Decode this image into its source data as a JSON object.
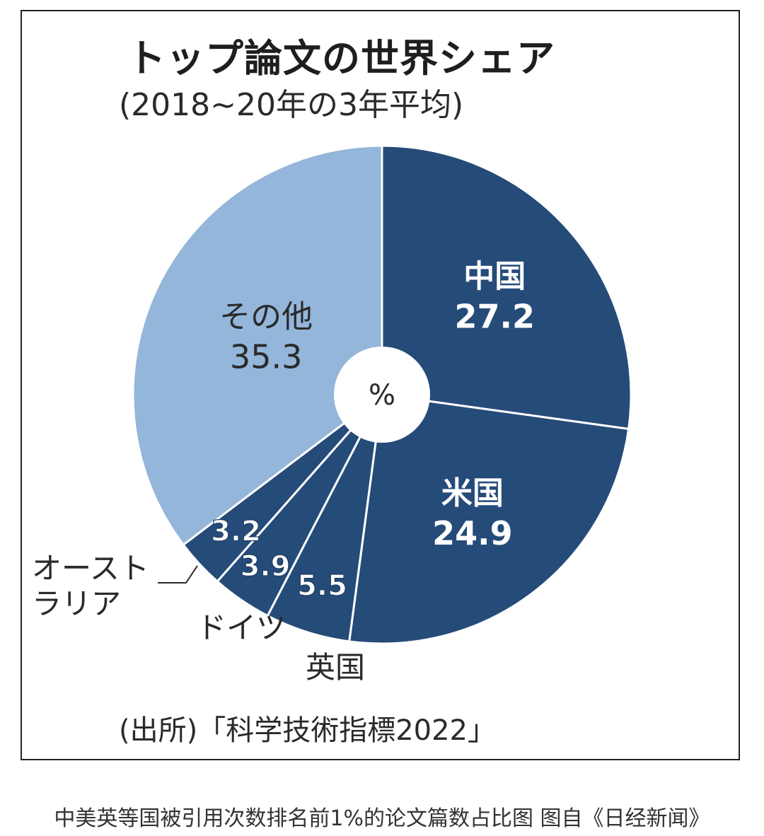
{
  "header": {
    "title": "トップ論文の世界シェア",
    "subtitle": "(2018~20年の3年平均)"
  },
  "center_unit": "%",
  "source": "(出所)「科学技術指標2022」",
  "caption": "中美英等国被引用次数排名前1%的论文篇数占比图 图自《日经新闻》",
  "colors": {
    "dark": "#254b79",
    "light": "#94b6da",
    "label_dark_bg": "#ffffff",
    "label_light_bg": "#1f3d63",
    "outer_text": "#2a2a2a"
  },
  "chart_data": {
    "type": "pie",
    "title": "トップ論文の世界シェア",
    "subtitle": "(2018~20年の3年平均)",
    "unit": "%",
    "slices": [
      {
        "label": "中国",
        "value": 27.2,
        "value_text": "27.2",
        "color": "#254b79"
      },
      {
        "label": "米国",
        "value": 24.9,
        "value_text": "24.9",
        "color": "#254b79"
      },
      {
        "label": "英国",
        "value": 5.5,
        "value_text": "5.5",
        "color": "#254b79"
      },
      {
        "label": "ドイツ",
        "value": 3.9,
        "value_text": "3.9",
        "color": "#254b79"
      },
      {
        "label": "オーストラリア",
        "label_lines": [
          "オースト",
          "ラリア"
        ],
        "value": 3.2,
        "value_text": "3.2",
        "color": "#254b79"
      },
      {
        "label": "その他",
        "value": 35.3,
        "value_text": "35.3",
        "color": "#94b6da"
      }
    ]
  }
}
